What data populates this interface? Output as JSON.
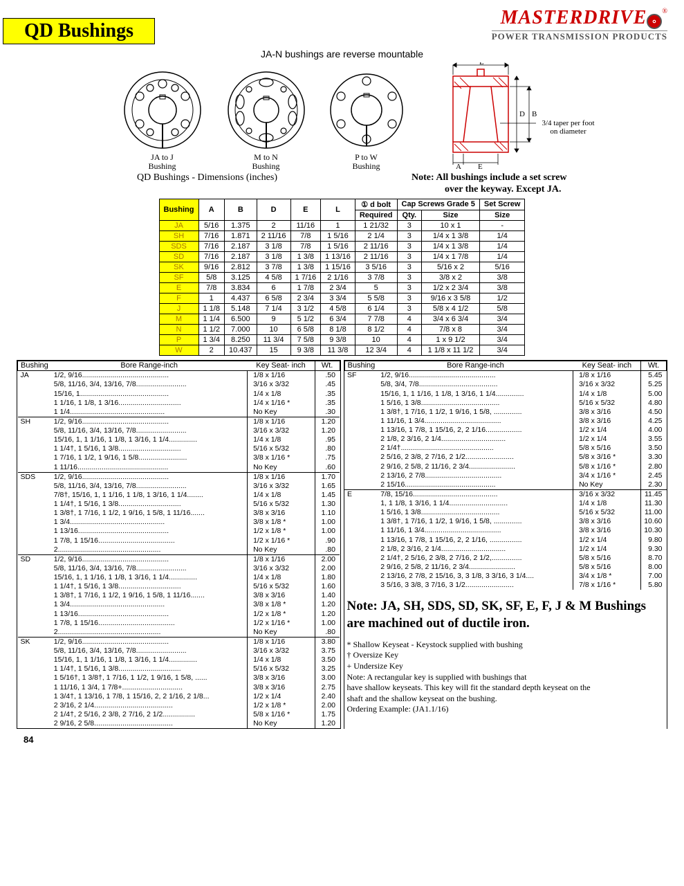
{
  "page": {
    "title": "QD Bushings",
    "brand_main": "MASTERDRIVE",
    "brand_sub": "POWER TRANSMISSION PRODUCTS",
    "subtitle": "JA-N bushings are reverse mountable",
    "dim_title": "QD Bushings - Dimensions (inches)",
    "keyway_note_1": "Note: All bushings include a set screw",
    "keyway_note_2": "over the keyway.  Except JA.",
    "taper_note_1": "3/4 taper per foot",
    "taper_note_2": "on diameter",
    "diag_labels": {
      "ja": "JA to J\nBushing",
      "mn": "M to N\nBushing",
      "pw": "P to W\nBushing"
    },
    "diag_letters": {
      "L": "L",
      "D": "D",
      "B": "B",
      "A": "A",
      "E": "E"
    },
    "page_number": "84"
  },
  "dim_table": {
    "head_top": {
      "bolt": "① d bolt",
      "cap": "Cap Screws Grade 5",
      "set": "Set Screw"
    },
    "columns": [
      "Bushing",
      "A",
      "B",
      "D",
      "E",
      "L",
      "Required",
      "Qty.",
      "Size",
      "Size"
    ],
    "rows": [
      [
        "JA",
        "5/16",
        "1.375",
        "2",
        "11/16",
        "1",
        "1 21/32",
        "3",
        "10 x 1",
        "-"
      ],
      [
        "SH",
        "7/16",
        "1.871",
        "2 11/16",
        "7/8",
        "1 5/16",
        "2 1/4",
        "3",
        "1/4 x 1 3/8",
        "1/4"
      ],
      [
        "SDS",
        "7/16",
        "2.187",
        "3 1/8",
        "7/8",
        "1 5/16",
        "2 11/16",
        "3",
        "1/4 x 1 3/8",
        "1/4"
      ],
      [
        "SD",
        "7/16",
        "2.187",
        "3 1/8",
        "1 3/8",
        "1 13/16",
        "2 11/16",
        "3",
        "1/4 x 1 7/8",
        "1/4"
      ],
      [
        "SK",
        "9/16",
        "2.812",
        "3 7/8",
        "1 3/8",
        "1 15/16",
        "3 5/16",
        "3",
        "5/16 x 2",
        "5/16"
      ],
      [
        "SF",
        "5/8",
        "3.125",
        "4 5/8",
        "1 7/16",
        "2 1/16",
        "3 7/8",
        "3",
        "3/8 x 2",
        "3/8"
      ],
      [
        "E",
        "7/8",
        "3.834",
        "6",
        "1 7/8",
        "2 3/4",
        "5",
        "3",
        "1/2 x 2 3/4",
        "3/8"
      ],
      [
        "F",
        "1",
        "4.437",
        "6 5/8",
        "2 3/4",
        "3 3/4",
        "5 5/8",
        "3",
        "9/16 x 3 5/8",
        "1/2"
      ],
      [
        "J",
        "1 1/8",
        "5.148",
        "7 1/4",
        "3 1/2",
        "4 5/8",
        "6 1/4",
        "3",
        "5/8 x 4 1/2",
        "5/8"
      ],
      [
        "M",
        "1 1/4",
        "6.500",
        "9",
        "5 1/2",
        "6 3/4",
        "7 7/8",
        "4",
        "3/4 x 6 3/4",
        "3/4"
      ],
      [
        "N",
        "1 1/2",
        "7.000",
        "10",
        "6 5/8",
        "8 1/8",
        "8 1/2",
        "4",
        "7/8 x 8",
        "3/4"
      ],
      [
        "P",
        "1 3/4",
        "8.250",
        "11 3/4",
        "7 5/8",
        "9 3/8",
        "10",
        "4",
        "1 x 9 1/2",
        "3/4"
      ],
      [
        "W",
        "2",
        "10.437",
        "15",
        "9 3/8",
        "11 3/8",
        "12 3/4",
        "4",
        "1 1/8 x 11 1/2",
        "3/4"
      ]
    ]
  },
  "bore_head": {
    "bushing": "Bushing",
    "range": "Bore Range-inch",
    "keyseat": "Key Seat- inch",
    "wt": "Wt."
  },
  "bore_left": [
    {
      "label": "JA",
      "rows": [
        [
          "1/2, 9/16",
          "1/8  x  1/16",
          ".50"
        ],
        [
          "5/8, 11/16, 3/4, 13/16, 7/8",
          "3/16  x  3/32",
          ".45"
        ],
        [
          "15/16, 1",
          "1/4  x  1/8",
          ".35"
        ],
        [
          "1 1/16, 1 1/8, 1 3/16",
          "1/4  x  1/16 *",
          ".35"
        ],
        [
          "1 1/4",
          "No Key",
          ".30"
        ]
      ]
    },
    {
      "label": "SH",
      "rows": [
        [
          "1/2, 9/16",
          "1/8  x  1/16",
          "1.20"
        ],
        [
          "5/8, 11/16, 3/4, 13/16, 7/8",
          "3/16  x  3/32",
          "1.20"
        ],
        [
          "15/16, 1, 1 1/16, 1 1/8, 1 3/16, 1 1/4",
          "1/4  x  1/8",
          ".95"
        ],
        [
          "1 1/4†, 1 5/16, 1 3/8",
          "5/16  x  5/32",
          ".80"
        ],
        [
          "1 7/16, 1 1/2, 1 9/16, 1 5/8",
          "3/8  x  1/16 *",
          ".75"
        ],
        [
          "1 11/16",
          "No Key",
          ".60"
        ]
      ]
    },
    {
      "label": "SDS",
      "rows": [
        [
          "1/2, 9/16",
          "1/8  x  1/16",
          "1.70"
        ],
        [
          "5/8, 11/16, 3/4, 13/16, 7/8",
          "3/16  x  3/32",
          "1.65"
        ],
        [
          "7/8†, 15/16, 1, 1 1/16, 1 1/8, 1 3/16, 1 1/4",
          "1/4  x  1/8",
          "1.45"
        ],
        [
          "1 1/4†, 1 5/16, 1 3/8",
          "5/16  x  5/32",
          "1.30"
        ],
        [
          "1 3/8†, 1 7/16, 1 1/2, 1 9/16, 1 5/8, 1 11/16",
          "3/8  x  3/16",
          "1.10"
        ],
        [
          "1 3/4",
          "3/8  x  1/8  *",
          "1.00"
        ],
        [
          "1 13/16",
          "1/2  x  1/8  *",
          "1.00"
        ],
        [
          "1 7/8, 1 15/16",
          "1/2  x  1/16 *",
          ".90"
        ],
        [
          "2",
          "No Key",
          ".80"
        ]
      ]
    },
    {
      "label": "SD",
      "rows": [
        [
          "1/2, 9/16",
          "1/8  x  1/16",
          "2.00"
        ],
        [
          "5/8, 11/16, 3/4, 13/16, 7/8",
          "3/16  x  3/32",
          "2.00"
        ],
        [
          "15/16, 1, 1 1/16, 1 1/8, 1 3/16, 1 1/4",
          "1/4  x  1/8",
          "1.80"
        ],
        [
          "1 1/4†, 1 5/16, 1 3/8",
          "5/16  x  5/32",
          "1.60"
        ],
        [
          "1 3/8†, 1 7/16, 1 1/2, 1 9/16, 1 5/8, 1 11/16",
          "3/8  x  3/16",
          "1.40"
        ],
        [
          "1 3/4",
          "3/8  x  1/8  *",
          "1.20"
        ],
        [
          "1 13/16",
          "1/2  x  1/8  *",
          "1.20"
        ],
        [
          "1 7/8, 1 15/16",
          "1/2  x  1/16 *",
          "1.00"
        ],
        [
          "2",
          "No Key",
          ".80"
        ]
      ]
    },
    {
      "label": "SK",
      "rows": [
        [
          "1/2, 9/16",
          "1/8  x  1/16",
          "3.80"
        ],
        [
          "5/8, 11/16, 3/4, 13/16, 7/8",
          "3/16  x  3/32",
          "3.75"
        ],
        [
          "15/16, 1, 1 1/16, 1 1/8, 1 3/16, 1 1/4",
          "1/4  x  1/8",
          "3.50"
        ],
        [
          "1 1/4†, 1 5/16, 1 3/8",
          "5/16  x  5/32",
          "3.25"
        ],
        [
          "1 5/16†, 1 3/8†, 1 7/16, 1 1/2, 1 9/16, 1 5/8, ....",
          "3/8  x  3/16",
          "3.00"
        ],
        [
          "1 11/16, 1 3/4, 1 7/8+",
          "3/8  x  3/16",
          "2.75"
        ],
        [
          "1 3/4†, 1 13/16, 1 7/8, 1 15/16, 2, 2 1/16, 2 1/8.",
          "1/2  x  1/4",
          "2.40"
        ],
        [
          "2 3/16, 2 1/4",
          "1/2  x  1/8  *",
          "2.00"
        ],
        [
          "2 1/4†, 2 5/16, 2 3/8, 2 7/16, 2 1/2",
          "5/8  x  1/16 *",
          "1.75"
        ],
        [
          "2 9/16, 2 5/8",
          "No Key",
          "1.20"
        ]
      ]
    }
  ],
  "bore_right": [
    {
      "label": "SF",
      "rows": [
        [
          "1/2, 9/16",
          "1/8  x  1/16",
          "5.45"
        ],
        [
          "5/8, 3/4, 7/8",
          "3/16  x  3/32",
          "5.25"
        ],
        [
          "15/16, 1, 1 1/16, 1 1/8, 1 3/16, 1 1/4",
          "1/4  x  1/8",
          "5.00"
        ],
        [
          "1 5/16, 1 3/8",
          "5/16  x  5/32",
          "4.80"
        ],
        [
          "1 3/8†, 1 7/16, 1 1/2, 1 9/16, 1 5/8, ",
          "3/8  x  3/16",
          "4.50"
        ],
        [
          "1 11/16, 1 3/4",
          "3/8  x  3/16",
          "4.25"
        ],
        [
          "1 13/16, 1 7/8, 1 15/16, 2, 2 1/16",
          "1/2  x  1/4",
          "4.00"
        ],
        [
          "2 1/8, 2 3/16, 2 1/4",
          "1/2  x  1/4",
          "3.55"
        ],
        [
          "2 1/4†",
          "5/8  x  5/16",
          "3.50"
        ],
        [
          "2 5/16, 2 3/8, 2 7/16, 2 1/2",
          "5/8  x  3/16 *",
          "3.30"
        ],
        [
          "2 9/16, 2 5/8, 2 11/16, 2 3/4",
          "5/8  x  1/16 *",
          "2.80"
        ],
        [
          "2 13/16, 2 7/8",
          "3/4  x  1/16 *",
          "2.45"
        ],
        [
          "2 15/16",
          "No Key",
          "2.30"
        ]
      ]
    },
    {
      "label": "E",
      "rows": [
        [
          "7/8, 15/16",
          "3/16  x  3/32",
          "11.45"
        ],
        [
          "1, 1 1/8, 1 3/16, 1 1/4",
          "1/4  x  1/8",
          "11.30"
        ],
        [
          "1 5/16, 1 3/8",
          "5/16  x  5/32",
          "11.00"
        ],
        [
          "1 3/8†, 1 7/16, 1 1/2, 1 9/16, 1 5/8, ",
          "3/8  x  3/16",
          "10.60"
        ],
        [
          "1 11/16, 1 3/4",
          "3/8  x  3/16",
          "10.30"
        ],
        [
          "1 13/16, 1 7/8, 1 15/16, 2, 2 1/16, ",
          "1/2  x  1/4",
          "9.80"
        ],
        [
          "2 1/8, 2 3/16, 2 1/4",
          "1/2  x  1/4",
          "9.30"
        ],
        [
          "2 1/4†, 2 5/16, 2 3/8, 2 7/16, 2 1/2,",
          "5/8  x  5/16",
          "8.70"
        ],
        [
          "2 9/16, 2 5/8, 2 11/16, 2 3/4",
          "5/8  x  5/16",
          "8.00"
        ],
        [
          "2 13/16, 2 7/8, 2 15/16, 3, 3 1/8, 3 3/16, 3 1/4..",
          "3/4  x  1/8  *",
          "7.00"
        ],
        [
          "3 5/16, 3 3/8, 3 7/16, 3 1/2",
          "7/8  x  1/16 *",
          "5.80"
        ]
      ]
    }
  ],
  "note_block": "Note: JA, SH, SDS, SD, SK, SF, E, F, J & M Bushings are machined out of ductile iron.",
  "footnotes": [
    "*  Shallow Keyseat - Keystock supplied with bushing",
    "†  Oversize Key",
    "+ Undersize Key",
    "Note:     A rectangular key is supplied with bushings that",
    "have shallow keyseats.  This key will fit the standard depth keyseat on the",
    "shaft and the shallow keyseat on  the bushing.",
    "Ordering Example:    (JA1.1/16)"
  ]
}
